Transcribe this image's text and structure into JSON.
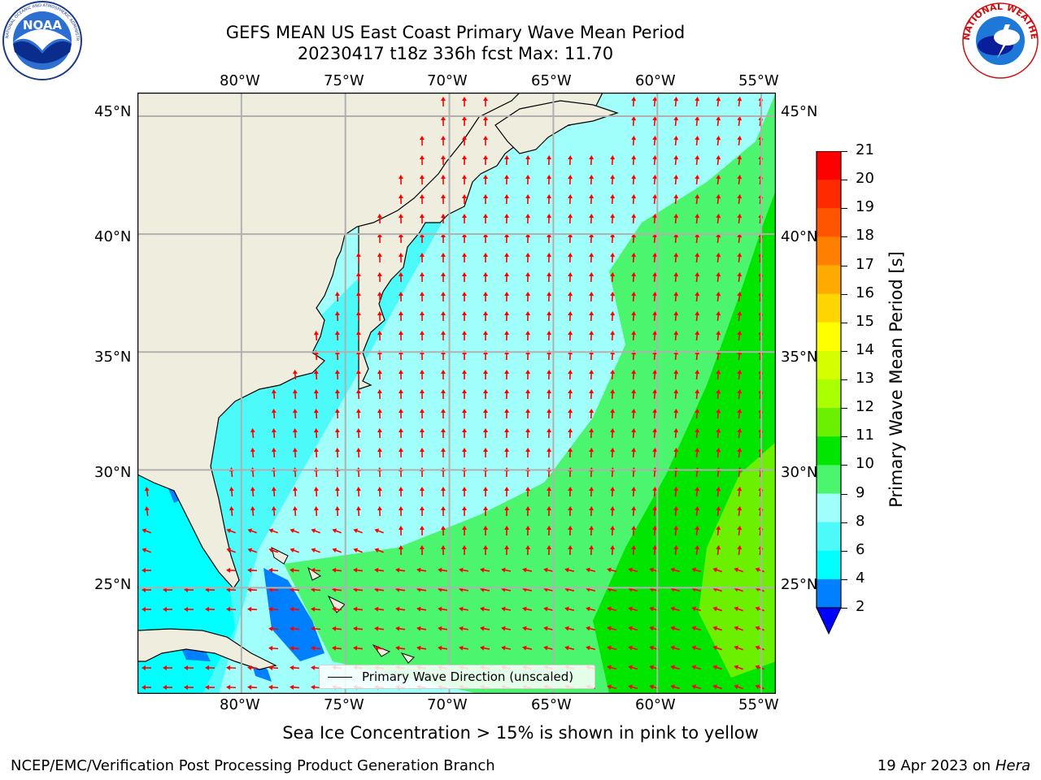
{
  "header": {
    "title_line1": "GEFS MEAN US East Coast Primary Wave Mean Period",
    "title_line2": "20230417 t18z 336h fcst   Max: 11.70"
  },
  "logos": {
    "left": {
      "text": "NOAA",
      "ring_text": "NATIONAL OCEANIC AND ATMOSPHERIC ADMINISTRATION · U.S. DEPARTMENT OF COMMERCE"
    },
    "right": {
      "ring_text": "NATIONAL WEATHER SERVICE"
    }
  },
  "map": {
    "lon_ticks_top": [
      "80°W",
      "75°W",
      "70°W",
      "65°W",
      "60°W",
      "55°W"
    ],
    "lon_ticks_bottom": [
      "80°W",
      "75°W",
      "70°W",
      "65°W",
      "60°W",
      "55°W"
    ],
    "lat_ticks_left": [
      "45°N",
      "40°N",
      "35°N",
      "30°N",
      "25°N"
    ],
    "lat_ticks_right": [
      "45°N",
      "40°N",
      "35°N",
      "30°N",
      "25°N"
    ],
    "lon_range": [
      -85,
      -54.3
    ],
    "lat_range": [
      20.5,
      46
    ],
    "land_color": "#efedde",
    "grid": true,
    "arrow_color": "#ff0000"
  },
  "legend": {
    "label": "Primary Wave Direction (unscaled)",
    "placement": "bottom-center"
  },
  "colorbar": {
    "label": "Primary Wave Mean Period [s]",
    "ticks": [
      "21",
      "20",
      "19",
      "18",
      "17",
      "16",
      "15",
      "14",
      "13",
      "12",
      "11",
      "10",
      "9",
      "8",
      "6",
      "4",
      "2"
    ],
    "colors": [
      "#ff0000",
      "#ff2a00",
      "#ff5500",
      "#ff8000",
      "#ffaa00",
      "#ffd500",
      "#ffff00",
      "#d5ff00",
      "#aaff00",
      "#6af000",
      "#00e600",
      "#4cf56e",
      "#a0fffa",
      "#4dfafa",
      "#00ffff",
      "#0080ff",
      "#0000ff"
    ]
  },
  "sea_ice_note": "Sea Ice Concentration > 15% is shown in pink to yellow",
  "footer": {
    "left": "NCEP/EMC/Verification Post Processing Product Generation Branch",
    "right_date": "19 Apr 2023 on ",
    "right_host": "Hera"
  }
}
